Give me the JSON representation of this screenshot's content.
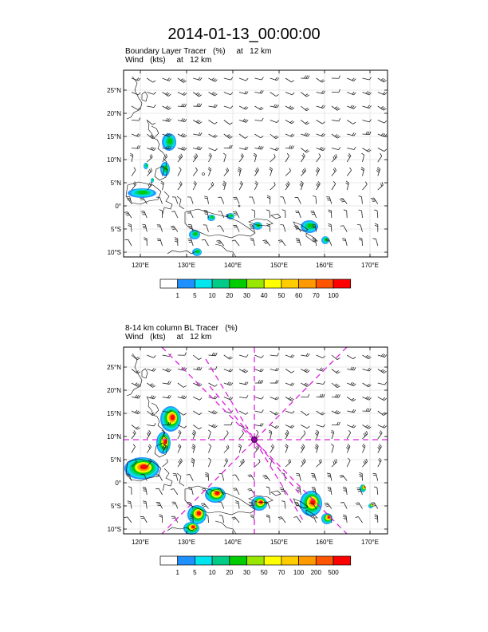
{
  "title": "2014-01-13_00:00:00",
  "panels": [
    {
      "title_line1": "Boundary Layer Tracer   (%)     at   12 km",
      "title_line2": "Wind   (kts)     at   12 km",
      "lat_labels": [
        "25°N",
        "20°N",
        "15°N",
        "10°N",
        "5°N",
        "0°",
        "5°S",
        "10°S"
      ],
      "lon_labels": [
        "120°E",
        "130°E",
        "140°E",
        "150°E",
        "160°E",
        "170°E"
      ],
      "colorbar_labels": [
        "1",
        "5",
        "10",
        "20",
        "30",
        "40",
        "50",
        "60",
        "70",
        "100"
      ],
      "colorbar_colors": [
        "#ffffff",
        "#1e90ff",
        "#00e5ee",
        "#00cc88",
        "#00cc00",
        "#99e600",
        "#ffff00",
        "#ffcc00",
        "#ff9900",
        "#ff5500",
        "#ff0000"
      ]
    },
    {
      "title_line1": "8-14 km column BL Tracer   (%)",
      "title_line2": "Wind   (kts)     at   12 km",
      "lat_labels": [
        "25°N",
        "20°N",
        "15°N",
        "10°N",
        "5°N",
        "0°",
        "5°S",
        "10°S"
      ],
      "lon_labels": [
        "120°E",
        "130°E",
        "140°E",
        "150°E",
        "160°E",
        "170°E"
      ],
      "colorbar_labels": [
        "1",
        "5",
        "10",
        "20",
        "30",
        "50",
        "70",
        "100",
        "200",
        "500"
      ],
      "colorbar_colors": [
        "#ffffff",
        "#1e90ff",
        "#00e5ee",
        "#00cc88",
        "#00cc00",
        "#99e600",
        "#ffff00",
        "#ffcc00",
        "#ff9900",
        "#ff5500",
        "#ff0000"
      ]
    }
  ]
}
